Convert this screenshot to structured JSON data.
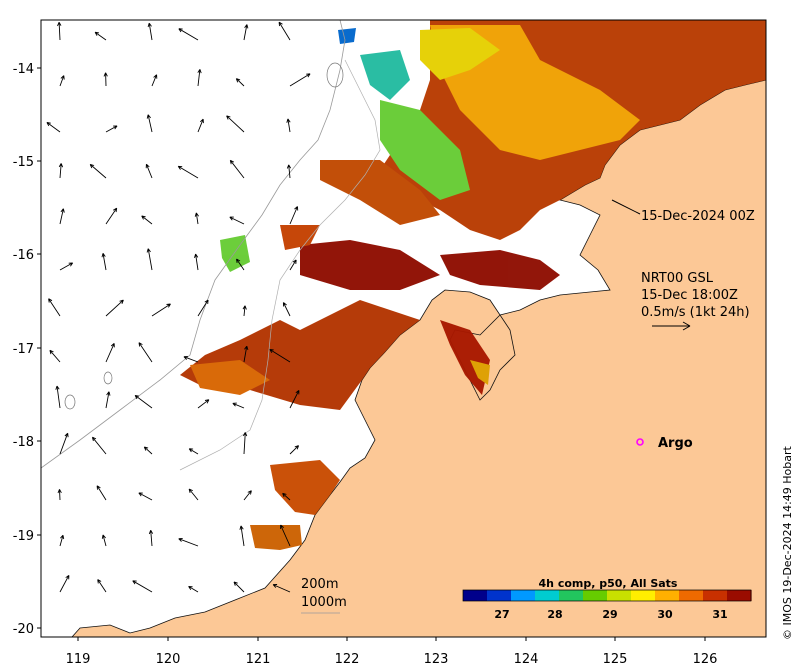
{
  "colors": {
    "land": "#fcc896",
    "coast": "#111111",
    "bathy": "#9a9a9a",
    "frame": "#000000",
    "argo": "#ff00ff"
  },
  "map": {
    "lon_range": [
      118.6,
      126.8
    ],
    "lat_range": [
      -20.1,
      -13.5
    ],
    "lon_ticks": [
      "119",
      "120",
      "121",
      "122",
      "123",
      "124",
      "125",
      "126"
    ],
    "lat_ticks": [
      "-14",
      "-15",
      "-16",
      "-17",
      "-18",
      "-19",
      "-20"
    ]
  },
  "annotations": {
    "sst_time": "15-Dec-2024 00Z",
    "current_source": "NRT00 GSL",
    "current_time": "15-Dec 18:00Z",
    "current_scale": "0.5m/s (1kt 24h)",
    "argo_label": "Argo",
    "bathy_200": "200m",
    "bathy_1000": "1000m"
  },
  "colorbar": {
    "title": "4h comp, p50, All Sats",
    "tick_labels": [
      "27",
      "28",
      "29",
      "30",
      "31"
    ],
    "range": [
      26.2,
      31.8
    ],
    "colors": [
      "#00008b",
      "#0033cc",
      "#0099ff",
      "#00ccd0",
      "#22c55e",
      "#66cc00",
      "#c8e000",
      "#ffee00",
      "#ffb000",
      "#ee6a00",
      "#c83000",
      "#9a0c00"
    ]
  },
  "copyright": "© IMOS 19-Dec-2024 14:49 Hobart",
  "icons": {
    "argo": "argo-float-circle-icon",
    "scale": "scale-arrow-icon"
  }
}
